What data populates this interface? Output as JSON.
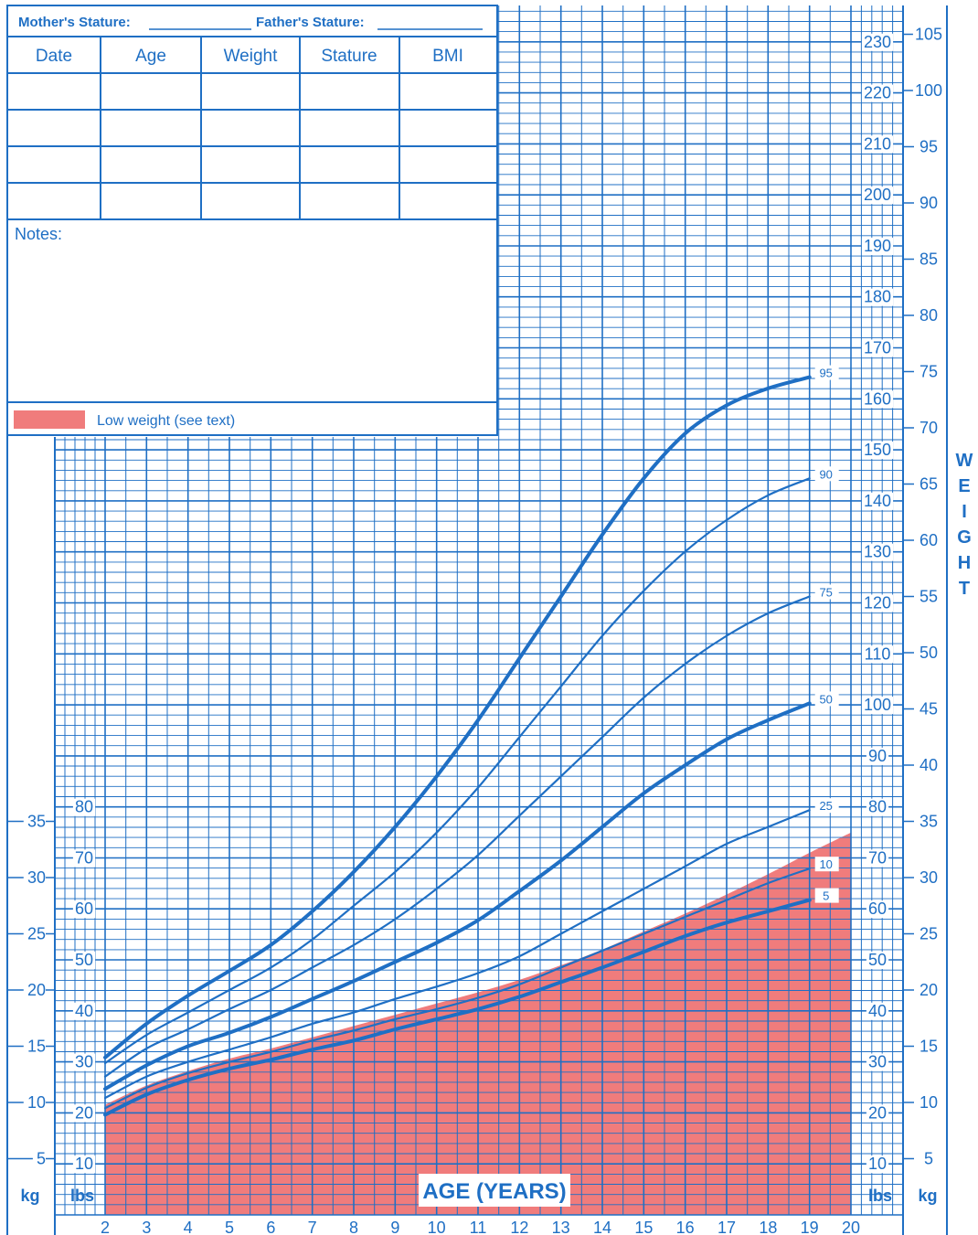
{
  "header": {
    "mother_stature": "Mother's Stature:",
    "father_stature": "Father's Stature:",
    "columns": [
      "Date",
      "Age",
      "Weight",
      "Stature",
      "BMI"
    ],
    "notes_label": "Notes:",
    "legend_label": "Low weight (see text)"
  },
  "axis_text": {
    "age_title": "AGE (YEARS)",
    "weight_title": [
      "W",
      "E",
      "I",
      "G",
      "H",
      "T"
    ],
    "kg": "kg",
    "lbs": "lbs"
  },
  "colors": {
    "grid": "#1f6fc4",
    "low_weight": "#f07c7c"
  },
  "chart_data": {
    "type": "line",
    "title": "",
    "xlabel": "AGE (YEARS)",
    "ylabel": "WEIGHT",
    "xlim": [
      2,
      20
    ],
    "ylim_kg": [
      0,
      108
    ],
    "ylim_lbs": [
      0,
      238
    ],
    "x_ticks": [
      2,
      3,
      4,
      5,
      6,
      7,
      8,
      9,
      10,
      11,
      12,
      13,
      14,
      15,
      16,
      17,
      18,
      19,
      20
    ],
    "y_ticks_kg_left": [
      5,
      10,
      15,
      20,
      25,
      30,
      35
    ],
    "y_ticks_lbs_left": [
      10,
      20,
      30,
      40,
      50,
      60,
      70,
      80
    ],
    "y_ticks_kg_right": [
      5,
      10,
      15,
      20,
      25,
      30,
      35,
      40,
      45,
      50,
      55,
      60,
      65,
      70,
      75,
      80,
      85,
      90,
      95,
      100,
      105
    ],
    "y_ticks_lbs_right": [
      10,
      20,
      30,
      40,
      50,
      60,
      70,
      80,
      90,
      100,
      110,
      120,
      130,
      140,
      150,
      160,
      170,
      180,
      190,
      200,
      210,
      220,
      230
    ],
    "grid": true,
    "series": [
      {
        "name": "95",
        "bold": true,
        "x": [
          2,
          3,
          4,
          5,
          6,
          7,
          8,
          9,
          10,
          11,
          12,
          13,
          14,
          15,
          16,
          17,
          18,
          19
        ],
        "values": [
          14.0,
          17.0,
          19.5,
          21.7,
          24.0,
          27.0,
          30.5,
          34.5,
          39.0,
          44.0,
          49.5,
          55.0,
          60.5,
          65.5,
          69.5,
          72.0,
          73.5,
          74.5
        ]
      },
      {
        "name": "90",
        "bold": false,
        "x": [
          2,
          3,
          4,
          5,
          6,
          7,
          8,
          9,
          10,
          11,
          12,
          13,
          14,
          15,
          16,
          17,
          18,
          19
        ],
        "values": [
          13.5,
          16.0,
          18.0,
          20.0,
          22.0,
          24.5,
          27.5,
          30.5,
          34.0,
          38.0,
          42.5,
          47.0,
          51.5,
          55.5,
          59.0,
          61.8,
          64.0,
          65.5
        ]
      },
      {
        "name": "75",
        "bold": false,
        "x": [
          2,
          3,
          4,
          5,
          6,
          7,
          8,
          9,
          10,
          11,
          12,
          13,
          14,
          15,
          16,
          17,
          18,
          19
        ],
        "values": [
          12.3,
          14.8,
          16.5,
          18.3,
          20.0,
          22.0,
          24.0,
          26.3,
          29.0,
          32.0,
          35.5,
          39.0,
          42.5,
          46.0,
          49.0,
          51.5,
          53.5,
          55.0
        ]
      },
      {
        "name": "50",
        "bold": true,
        "x": [
          2,
          3,
          4,
          5,
          6,
          7,
          8,
          9,
          10,
          11,
          12,
          13,
          14,
          15,
          16,
          17,
          18,
          19
        ],
        "values": [
          11.2,
          13.3,
          15.0,
          16.2,
          17.6,
          19.2,
          20.8,
          22.5,
          24.2,
          26.2,
          28.8,
          31.5,
          34.5,
          37.5,
          40.0,
          42.3,
          44.0,
          45.5
        ]
      },
      {
        "name": "25",
        "bold": false,
        "x": [
          2,
          3,
          4,
          5,
          6,
          7,
          8,
          9,
          10,
          11,
          12,
          13,
          14,
          15,
          16,
          17,
          18,
          19
        ],
        "values": [
          10.4,
          12.3,
          13.6,
          14.7,
          15.8,
          17.0,
          18.0,
          19.2,
          20.3,
          21.5,
          23.0,
          25.0,
          27.0,
          29.0,
          31.0,
          33.0,
          34.5,
          36.0
        ]
      },
      {
        "name": "10",
        "bold": false,
        "x": [
          2,
          3,
          4,
          5,
          6,
          7,
          8,
          9,
          10,
          11,
          12,
          13,
          14,
          15,
          16,
          17,
          18,
          19
        ],
        "values": [
          9.5,
          11.3,
          12.6,
          13.6,
          14.5,
          15.5,
          16.4,
          17.4,
          18.3,
          19.3,
          20.5,
          22.0,
          23.5,
          25.0,
          26.5,
          28.0,
          29.5,
          30.8
        ]
      },
      {
        "name": "5",
        "bold": true,
        "x": [
          2,
          3,
          4,
          5,
          6,
          7,
          8,
          9,
          10,
          11,
          12,
          13,
          14,
          15,
          16,
          17,
          18,
          19
        ],
        "values": [
          8.9,
          10.7,
          12.0,
          13.0,
          13.8,
          14.7,
          15.5,
          16.5,
          17.4,
          18.3,
          19.4,
          20.7,
          22.0,
          23.4,
          24.8,
          26.0,
          27.0,
          28.0
        ]
      }
    ],
    "low_weight_region": {
      "x": [
        2,
        3,
        4,
        5,
        6,
        7,
        8,
        9,
        10,
        11,
        12,
        13,
        14,
        15,
        16,
        17,
        18,
        19,
        20
      ],
      "upper": [
        9.8,
        11.5,
        12.8,
        13.9,
        14.8,
        15.8,
        16.8,
        17.8,
        18.8,
        19.8,
        20.9,
        22.2,
        23.6,
        25.2,
        26.8,
        28.5,
        30.3,
        32.2,
        34.0
      ]
    }
  }
}
